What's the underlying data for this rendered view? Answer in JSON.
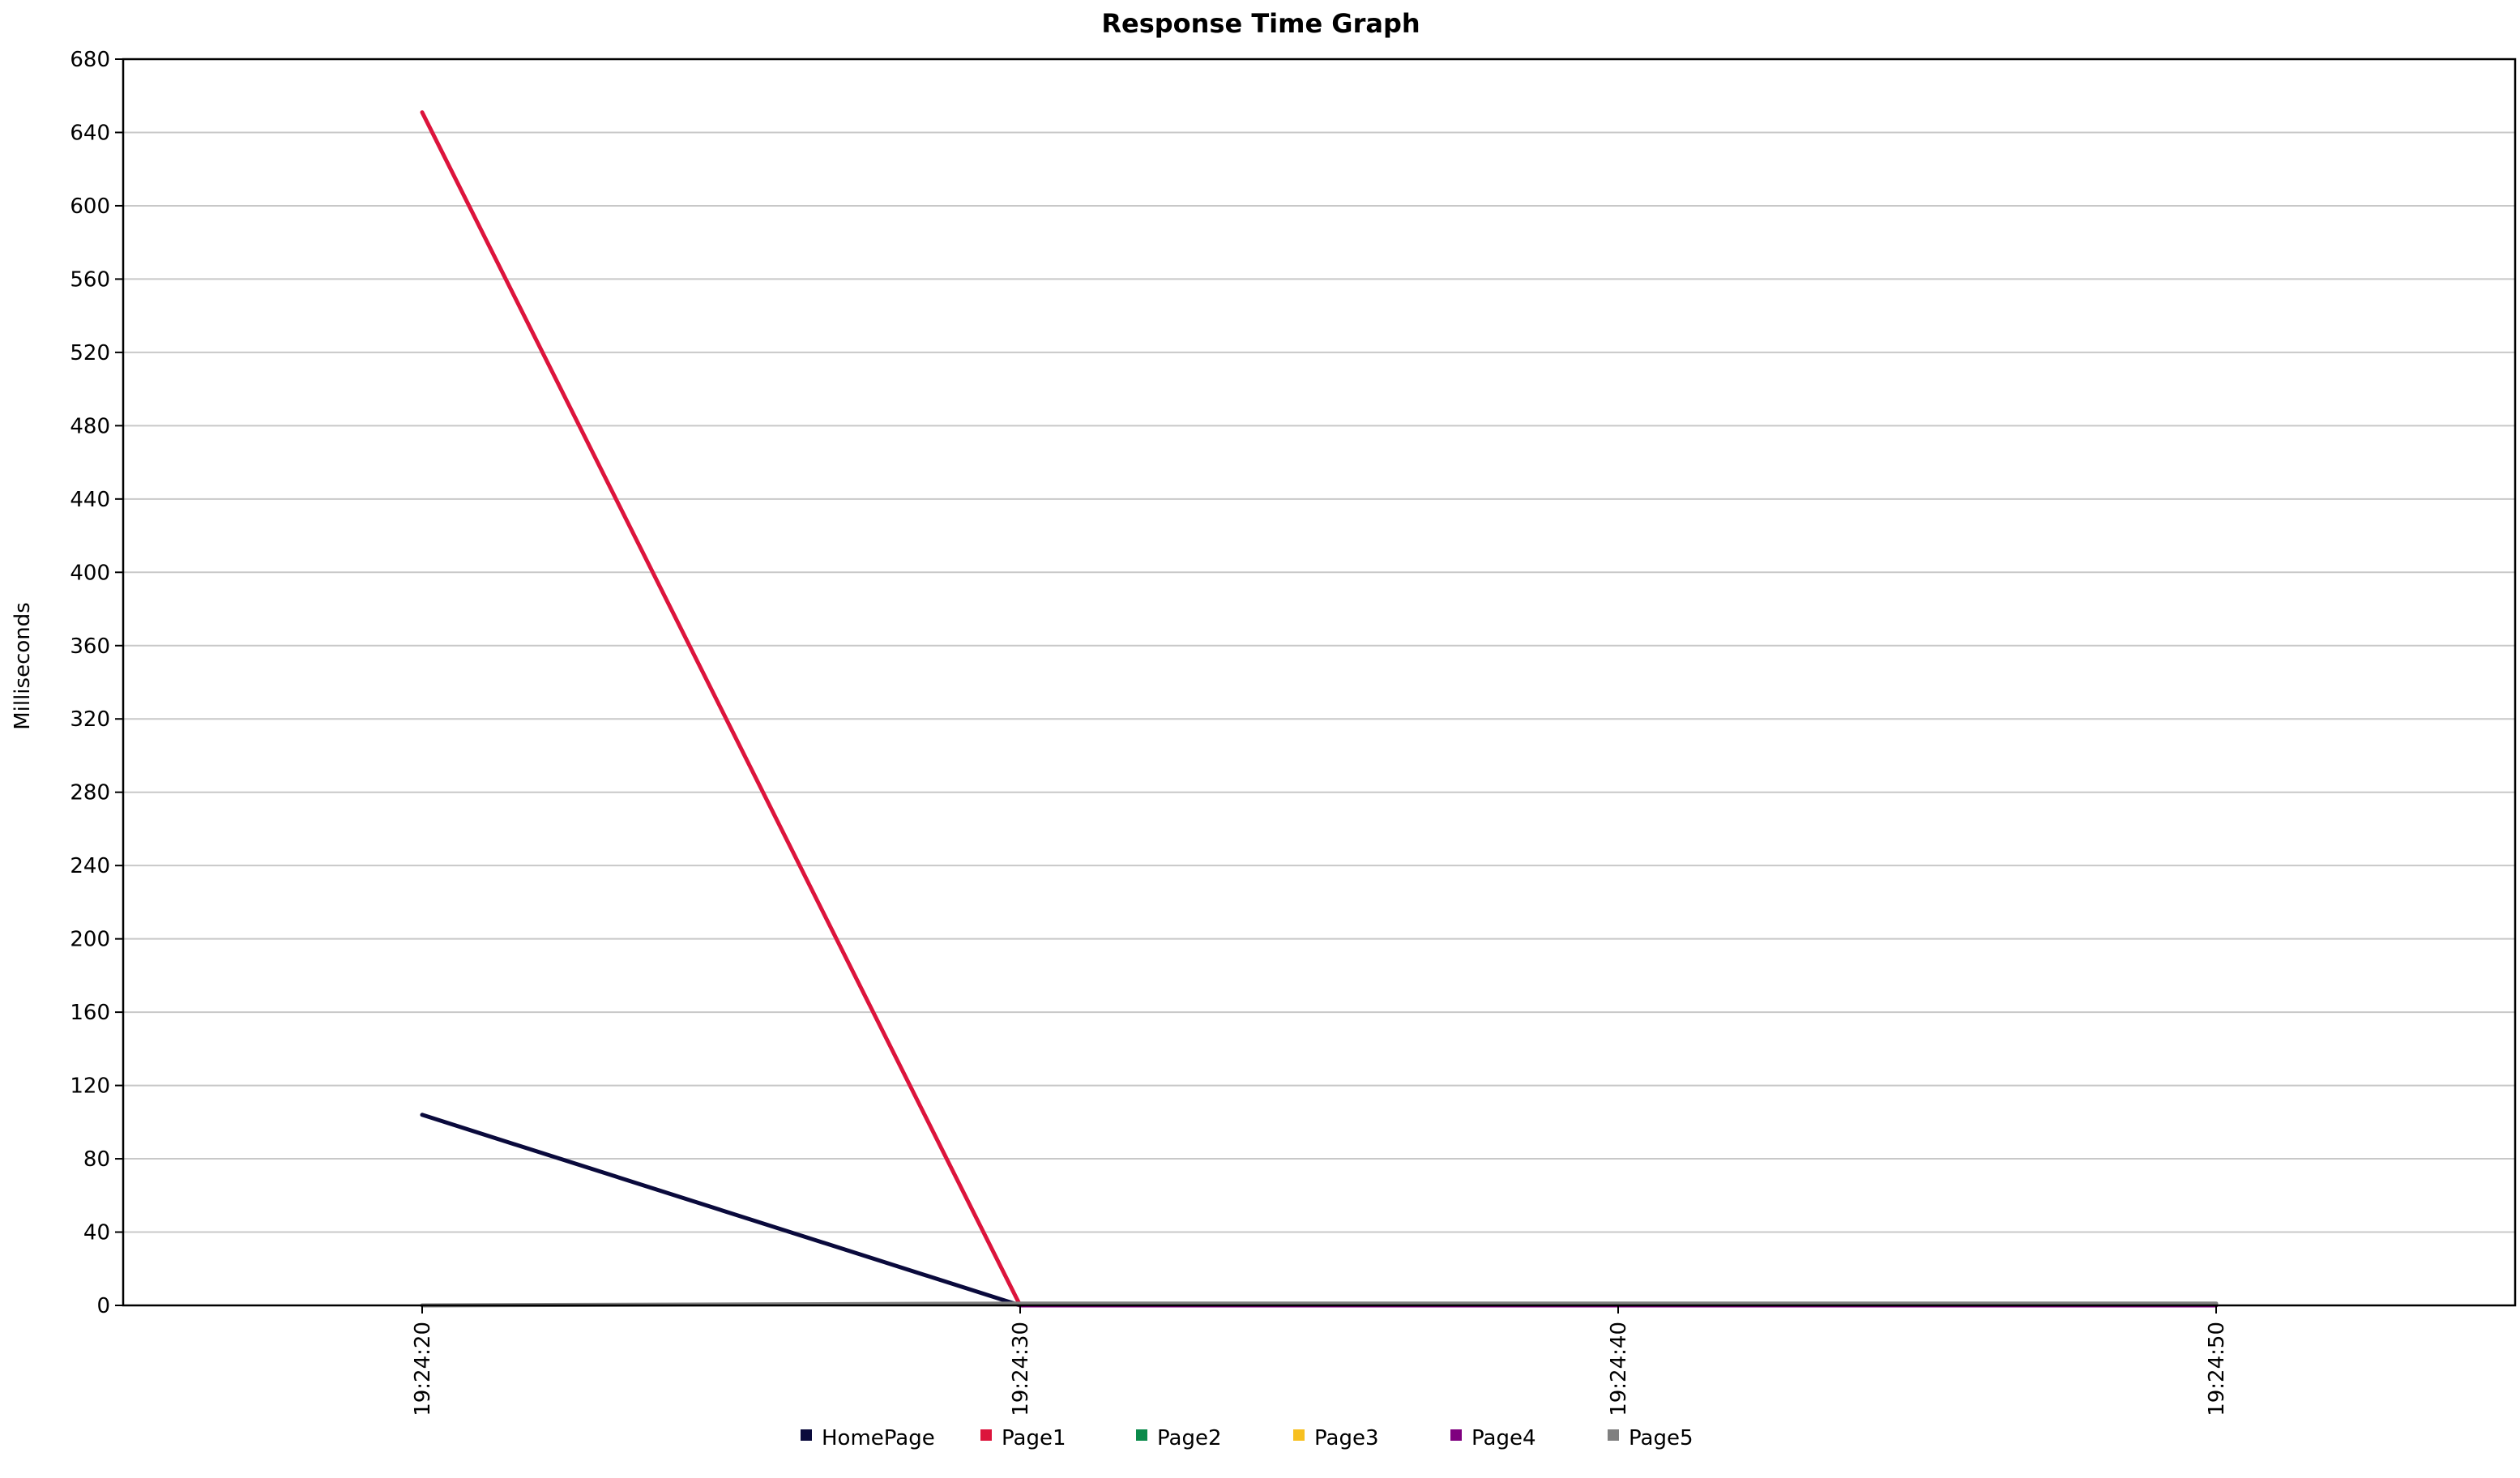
{
  "chart_data": {
    "type": "line",
    "title": "Response Time Graph",
    "xlabel": "",
    "ylabel": "Milliseconds",
    "x": [
      "19:24:20",
      "19:24:30",
      "19:24:40",
      "19:24:50"
    ],
    "x_tick_labels": [
      "19:24:20",
      "19:24:30",
      "19:24:40",
      "19:24:50"
    ],
    "y_tick_labels": [
      "0",
      "40",
      "80",
      "120",
      "160",
      "200",
      "240",
      "280",
      "320",
      "360",
      "400",
      "440",
      "480",
      "520",
      "560",
      "600",
      "640",
      "680"
    ],
    "ylim": [
      0,
      680
    ],
    "x_range": [
      "19:24:15",
      "19:24:55"
    ],
    "grid": true,
    "grid_axis": "y",
    "legend_position": "bottom",
    "series": [
      {
        "name": "HomePage",
        "color": "#0a0a3c",
        "values": [
          104,
          0,
          null,
          null
        ]
      },
      {
        "name": "Page1",
        "color": "#dc143c",
        "values": [
          651,
          0,
          null,
          null
        ]
      },
      {
        "name": "Page2",
        "color": "#0a8a4a",
        "values": [
          null,
          0,
          0,
          0
        ]
      },
      {
        "name": "Page3",
        "color": "#f7c020",
        "values": [
          null,
          0,
          0,
          0
        ]
      },
      {
        "name": "Page4",
        "color": "#7f007f",
        "values": [
          null,
          0,
          0,
          0
        ]
      },
      {
        "name": "Page5",
        "color": "#808080",
        "values": [
          0,
          1,
          1,
          1
        ]
      }
    ]
  }
}
